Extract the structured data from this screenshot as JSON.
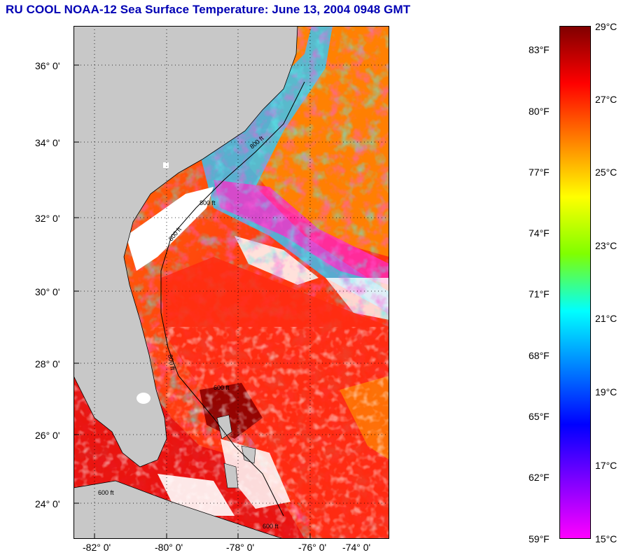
{
  "title": "RU COOL  NOAA-12  Sea Surface Temperature:  June 13, 2004 0948 GMT",
  "map": {
    "lat_labels": [
      "36° 0'",
      "34° 0'",
      "32° 0'",
      "30° 0'",
      "28° 0'",
      "26° 0'",
      "24° 0'"
    ],
    "lon_labels": [
      "-82° 0'",
      "-80° 0'",
      "-78° 0'",
      "-76° 0'",
      "-74° 0'"
    ],
    "contour_labels": [
      "800 ft",
      "800 ft",
      "800 ft",
      "800 ft",
      "600 ft",
      "600 ft",
      "600 ft"
    ],
    "colors": {
      "land": "#c8c8c8",
      "cloud": "#ffffff",
      "warm": "#ff3c14",
      "cool": "#ff28c8"
    }
  },
  "colorbar": {
    "fahrenheit": [
      "83°F",
      "80°F",
      "77°F",
      "74°F",
      "71°F",
      "68°F",
      "65°F",
      "62°F",
      "59°F"
    ],
    "celsius": [
      "29°C",
      "27°C",
      "25°C",
      "23°C",
      "21°C",
      "19°C",
      "17°C",
      "15°C"
    ],
    "colors": [
      "#800000",
      "#ff0000",
      "#ff8000",
      "#ffff00",
      "#80ff00",
      "#00ffff",
      "#0080ff",
      "#0000ff",
      "#8000ff",
      "#ff00ff"
    ]
  }
}
